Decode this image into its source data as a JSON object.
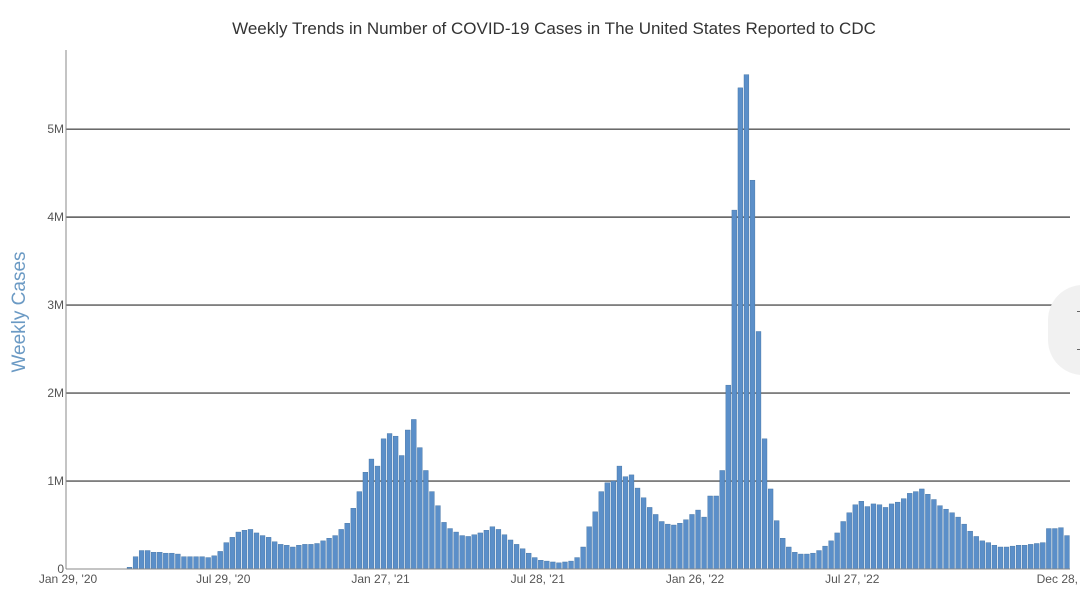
{
  "title": "Weekly Trends in Number of COVID-19 Cases in The United States Reported to CDC",
  "chart_data": {
    "type": "bar",
    "title": "Weekly Trends in Number of COVID-19 Cases in The United States Reported to CDC",
    "xlabel": "",
    "ylabel": "Weekly Cases",
    "ylim": [
      0,
      5900000
    ],
    "yticks": [
      0,
      1000000,
      2000000,
      3000000,
      4000000,
      5000000
    ],
    "ytick_labels": [
      "0",
      "1M",
      "2M",
      "3M",
      "4M",
      "5M"
    ],
    "xtick_labels": [
      "Jan 29, '20",
      "Jul 29, '20",
      "Jan 27, '21",
      "Jul 28, '21",
      "Jan 26, '22",
      "Jul 27, '22",
      "Dec 28,"
    ],
    "grid": true,
    "bar_color": "#5b8fc9",
    "series": [
      {
        "values": [
          0,
          0,
          0,
          0,
          0,
          0,
          0,
          0,
          0,
          0,
          20000,
          140000,
          210000,
          210000,
          190000,
          190000,
          180000,
          180000,
          170000,
          140000,
          140000,
          140000,
          140000,
          130000,
          150000,
          200000,
          300000,
          360000,
          420000,
          440000,
          450000,
          410000,
          380000,
          360000,
          310000,
          280000,
          270000,
          250000,
          270000,
          280000,
          280000,
          290000,
          320000,
          350000,
          380000,
          450000,
          520000,
          690000,
          880000,
          1100000,
          1250000,
          1170000,
          1480000,
          1540000,
          1510000,
          1290000,
          1580000,
          1700000,
          1380000,
          1120000,
          880000,
          720000,
          530000,
          460000,
          420000,
          380000,
          370000,
          390000,
          410000,
          440000,
          480000,
          450000,
          390000,
          330000,
          280000,
          230000,
          180000,
          130000,
          100000,
          90000,
          80000,
          70000,
          80000,
          90000,
          130000,
          250000,
          480000,
          650000,
          880000,
          980000,
          1000000,
          1170000,
          1050000,
          1070000,
          920000,
          810000,
          700000,
          620000,
          540000,
          510000,
          500000,
          520000,
          560000,
          620000,
          670000,
          590000,
          830000,
          830000,
          1120000,
          2090000,
          4080000,
          5470000,
          5620000,
          4420000,
          2700000,
          1480000,
          910000,
          550000,
          350000,
          250000,
          190000,
          170000,
          170000,
          180000,
          210000,
          260000,
          320000,
          410000,
          540000,
          640000,
          730000,
          770000,
          710000,
          740000,
          730000,
          700000,
          740000,
          760000,
          800000,
          860000,
          880000,
          910000,
          850000,
          790000,
          720000,
          680000,
          640000,
          590000,
          510000,
          430000,
          370000,
          320000,
          300000,
          270000,
          250000,
          250000,
          260000,
          270000,
          270000,
          280000,
          290000,
          300000,
          460000,
          460000,
          470000,
          380000
        ]
      }
    ]
  }
}
